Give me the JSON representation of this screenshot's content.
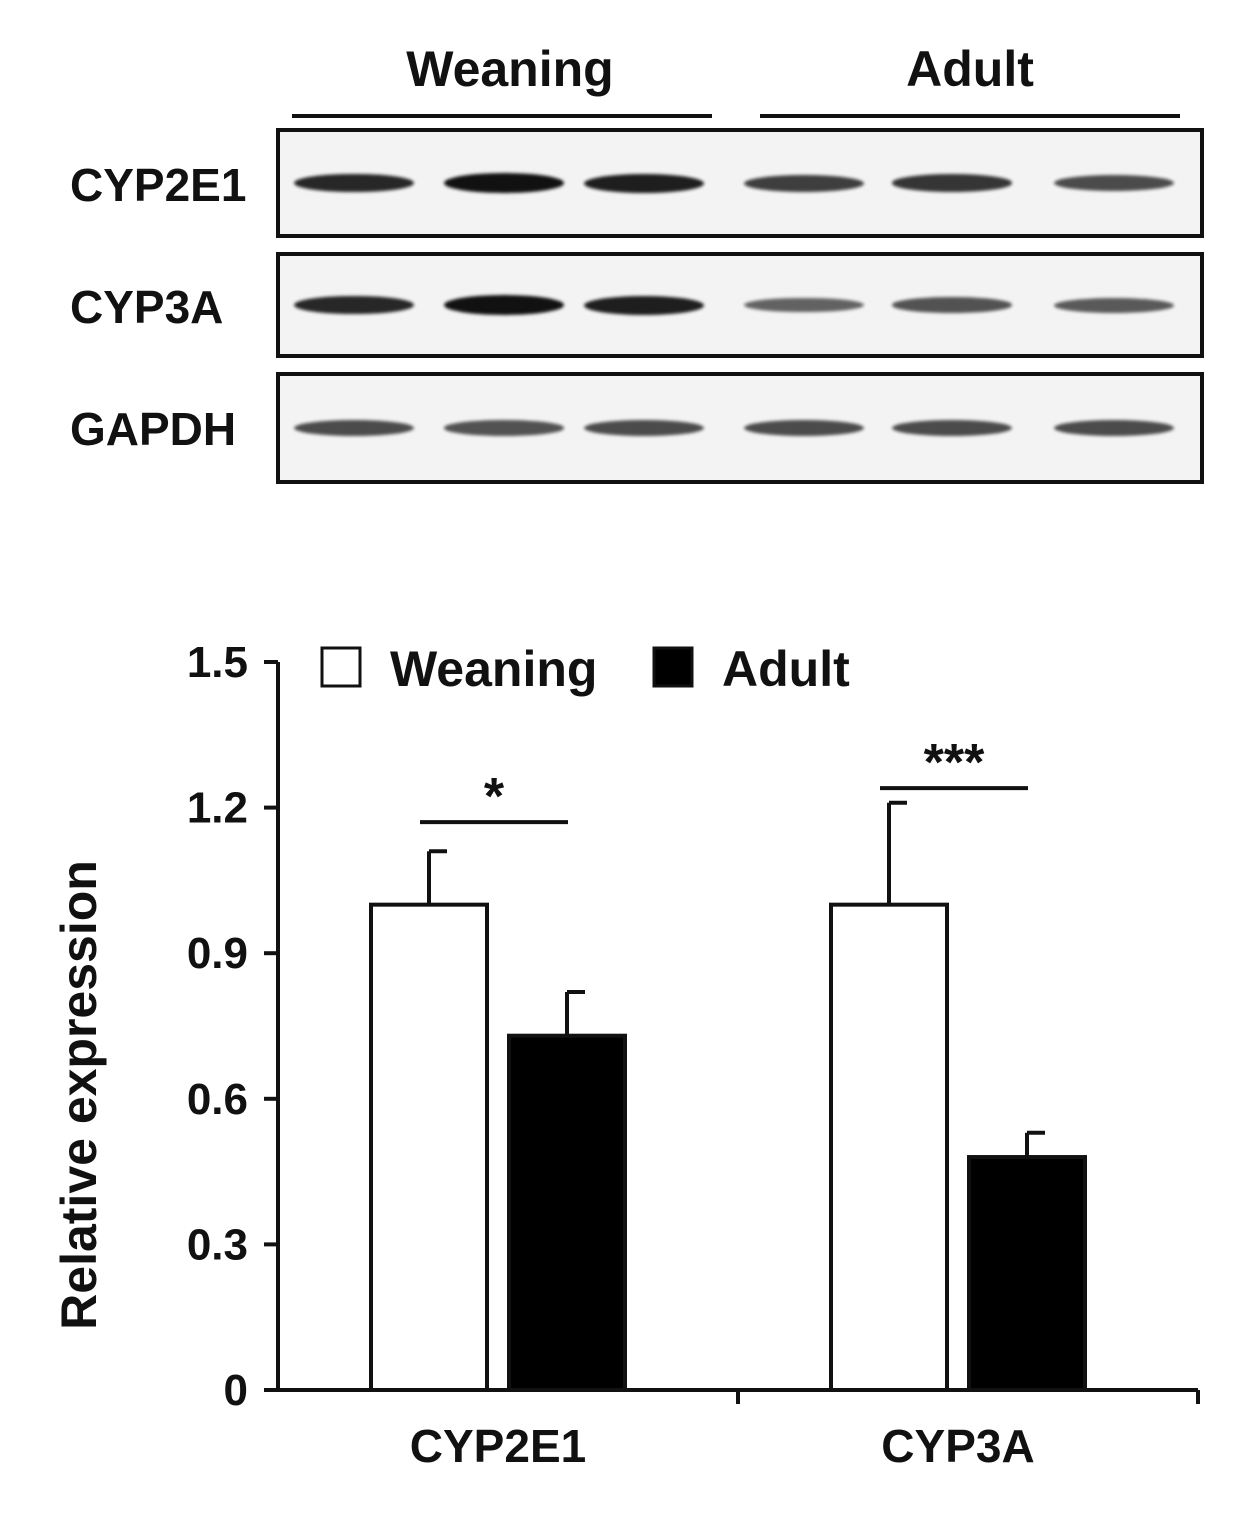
{
  "blot": {
    "groups": [
      "Weaning",
      "Adult"
    ],
    "rows": [
      {
        "label": "CYP2E1",
        "intensities": [
          0.85,
          1.0,
          0.9,
          0.7,
          0.75,
          0.6
        ]
      },
      {
        "label": "CYP3A",
        "intensities": [
          0.85,
          1.0,
          0.9,
          0.45,
          0.55,
          0.5
        ]
      },
      {
        "label": "GAPDH",
        "intensities": [
          0.6,
          0.55,
          0.6,
          0.6,
          0.6,
          0.6
        ]
      }
    ],
    "band_color": "#111111"
  },
  "chart_data": {
    "type": "bar",
    "categories": [
      "CYP2E1",
      "CYP3A"
    ],
    "series": [
      {
        "name": "Weaning",
        "values": [
          1.0,
          1.0
        ],
        "errors": [
          0.11,
          0.21
        ],
        "color": "#ffffff"
      },
      {
        "name": "Adult",
        "values": [
          0.73,
          0.48
        ],
        "errors": [
          0.09,
          0.05
        ],
        "color": "#000000"
      }
    ],
    "ylabel": "Relative expression",
    "yticks": [
      "0",
      "0.3",
      "0.6",
      "0.9",
      "1.2",
      "1.5"
    ],
    "ylim": [
      0,
      1.5
    ],
    "legend_position": "top",
    "significance": [
      {
        "category": "CYP2E1",
        "label": "*",
        "y": 1.17
      },
      {
        "category": "CYP3A",
        "label": "***",
        "y": 1.24
      }
    ]
  }
}
